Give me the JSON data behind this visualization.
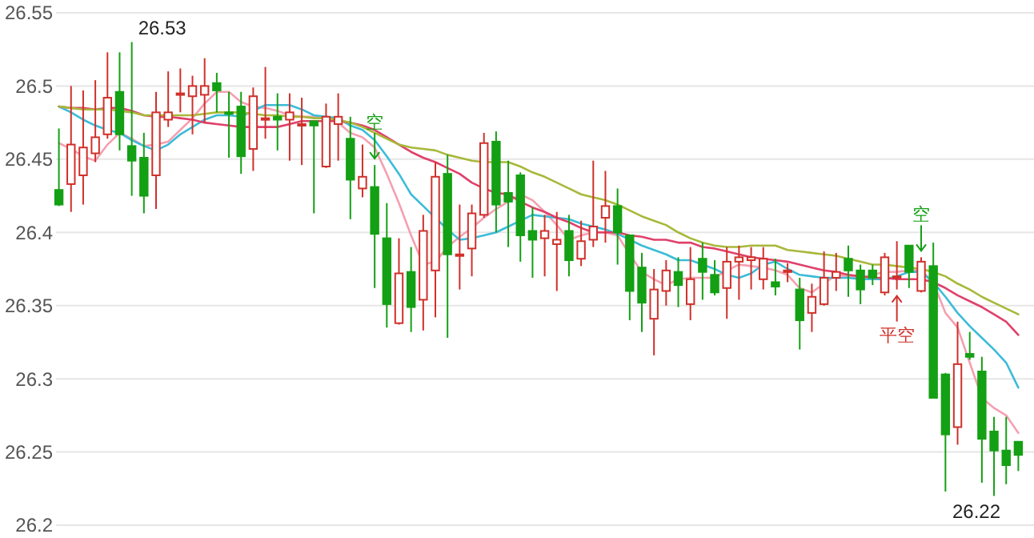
{
  "chart_data": {
    "type": "candlestick",
    "categories": [
      null,
      null,
      null,
      null,
      null,
      null,
      null,
      null,
      null,
      null,
      null,
      null,
      null,
      null,
      null,
      null,
      null,
      null,
      null,
      null,
      null,
      null,
      null,
      null,
      null,
      null,
      null,
      null,
      null,
      null,
      null,
      null,
      null,
      null,
      null,
      null,
      null,
      null,
      null,
      null,
      null,
      null,
      null,
      null,
      null,
      null,
      null,
      null,
      null,
      null,
      null,
      null,
      null,
      null,
      null,
      null,
      null,
      null,
      null,
      null,
      null,
      null,
      null,
      null,
      null,
      null,
      null,
      null,
      null,
      null,
      null,
      null,
      null,
      null,
      null,
      null,
      null,
      null,
      null,
      null
    ],
    "ohlc": [
      [
        26.429,
        26.471,
        26.418,
        26.419
      ],
      [
        26.433,
        26.5,
        26.414,
        26.46
      ],
      [
        26.439,
        26.497,
        26.419,
        26.458
      ],
      [
        26.454,
        26.504,
        26.448,
        26.465
      ],
      [
        26.467,
        26.523,
        26.464,
        26.492
      ],
      [
        26.496,
        26.523,
        26.456,
        26.467
      ],
      [
        26.459,
        26.53,
        26.425,
        26.449
      ],
      [
        26.451,
        26.468,
        26.413,
        26.425
      ],
      [
        26.439,
        26.496,
        26.416,
        26.482
      ],
      [
        26.477,
        26.51,
        26.472,
        26.482
      ],
      [
        26.494,
        26.512,
        26.482,
        26.495
      ],
      [
        26.493,
        26.507,
        26.467,
        26.5
      ],
      [
        26.494,
        26.519,
        26.475,
        26.5
      ],
      [
        26.502,
        26.509,
        26.482,
        26.497
      ],
      [
        26.482,
        26.496,
        26.451,
        26.481
      ],
      [
        26.486,
        26.496,
        26.44,
        26.452
      ],
      [
        26.457,
        26.499,
        26.442,
        26.493
      ],
      [
        26.477,
        26.513,
        26.464,
        26.478
      ],
      [
        26.479,
        26.495,
        26.456,
        26.477
      ],
      [
        26.477,
        26.495,
        26.449,
        26.482
      ],
      [
        26.473,
        26.492,
        26.446,
        26.474
      ],
      [
        26.476,
        26.476,
        26.413,
        26.473
      ],
      [
        26.445,
        26.488,
        26.444,
        26.479
      ],
      [
        26.474,
        26.495,
        26.449,
        26.479
      ],
      [
        26.464,
        26.479,
        26.409,
        26.436
      ],
      [
        26.43,
        26.46,
        26.424,
        26.438
      ],
      [
        26.431,
        26.446,
        26.362,
        26.399
      ],
      [
        26.396,
        26.42,
        26.335,
        26.351
      ],
      [
        26.338,
        26.396,
        26.337,
        26.372
      ],
      [
        26.373,
        26.39,
        26.332,
        26.349
      ],
      [
        26.354,
        26.412,
        26.333,
        26.401
      ],
      [
        26.374,
        26.448,
        26.342,
        26.438
      ],
      [
        26.44,
        26.453,
        26.328,
        26.385
      ],
      [
        26.384,
        26.419,
        26.361,
        26.385
      ],
      [
        26.389,
        26.419,
        26.37,
        26.413
      ],
      [
        26.412,
        26.468,
        26.41,
        26.461
      ],
      [
        26.462,
        26.469,
        26.4,
        26.419
      ],
      [
        26.427,
        26.449,
        26.39,
        26.421
      ],
      [
        26.439,
        26.441,
        26.38,
        26.398
      ],
      [
        26.401,
        26.417,
        26.369,
        26.395
      ],
      [
        26.396,
        26.412,
        26.37,
        26.401
      ],
      [
        26.392,
        26.414,
        26.36,
        26.395
      ],
      [
        26.401,
        26.412,
        26.37,
        26.381
      ],
      [
        26.382,
        26.408,
        26.377,
        26.394
      ],
      [
        26.395,
        26.449,
        26.39,
        26.404
      ],
      [
        26.41,
        26.442,
        26.393,
        26.418
      ],
      [
        26.418,
        26.43,
        26.378,
        26.4
      ],
      [
        26.398,
        26.398,
        26.34,
        26.36
      ],
      [
        26.376,
        26.386,
        26.332,
        26.352
      ],
      [
        26.341,
        26.375,
        26.316,
        26.361
      ],
      [
        26.36,
        26.381,
        26.35,
        26.374
      ],
      [
        26.373,
        26.383,
        26.349,
        26.364
      ],
      [
        26.351,
        26.39,
        26.34,
        26.368
      ],
      [
        26.382,
        26.393,
        26.354,
        26.373
      ],
      [
        26.371,
        26.381,
        26.357,
        26.359
      ],
      [
        26.362,
        26.39,
        26.341,
        26.38
      ],
      [
        26.38,
        26.391,
        26.354,
        26.383
      ],
      [
        26.381,
        26.39,
        26.361,
        26.383
      ],
      [
        26.368,
        26.39,
        26.361,
        26.382
      ],
      [
        26.366,
        26.382,
        26.357,
        26.363
      ],
      [
        26.373,
        26.379,
        26.366,
        26.374
      ],
      [
        26.361,
        26.369,
        26.32,
        26.34
      ],
      [
        26.345,
        26.365,
        26.332,
        26.356
      ],
      [
        26.351,
        26.387,
        26.35,
        26.369
      ],
      [
        26.369,
        26.386,
        26.36,
        26.373
      ],
      [
        26.382,
        26.391,
        26.356,
        26.374
      ],
      [
        26.374,
        26.378,
        26.351,
        26.361
      ],
      [
        26.374,
        26.378,
        26.364,
        26.369
      ],
      [
        26.359,
        26.386,
        26.357,
        26.383
      ],
      [
        26.369,
        26.394,
        26.361,
        26.37
      ],
      [
        26.391,
        26.391,
        26.362,
        26.373
      ],
      [
        26.36,
        26.383,
        26.359,
        26.38
      ],
      [
        26.377,
        26.393,
        26.287,
        26.287
      ],
      [
        26.303,
        26.304,
        26.223,
        26.262
      ],
      [
        26.267,
        26.339,
        26.255,
        26.31
      ],
      [
        26.317,
        26.332,
        26.313,
        26.315
      ],
      [
        26.305,
        26.315,
        26.229,
        26.259
      ],
      [
        26.264,
        26.274,
        26.22,
        26.251
      ],
      [
        26.251,
        26.274,
        26.228,
        26.241
      ],
      [
        26.257,
        26.257,
        26.237,
        26.248
      ]
    ],
    "series": [
      {
        "type": "line",
        "color": "#f4a0b0",
        "values": [
          26.461,
          26.457,
          26.452,
          26.449,
          26.46,
          26.468,
          26.464,
          26.459,
          26.46,
          26.462,
          26.47,
          26.478,
          26.488,
          26.496,
          26.496,
          26.489,
          26.486,
          26.485,
          26.483,
          26.48,
          26.479,
          26.479,
          26.478,
          26.475,
          26.468,
          26.465,
          26.458,
          26.44,
          26.42,
          26.398,
          26.378,
          26.38,
          26.39,
          26.397,
          26.403,
          26.41,
          26.416,
          26.421,
          26.426,
          26.422,
          26.414,
          26.405,
          26.395,
          26.398,
          26.4,
          26.4,
          26.398,
          26.385,
          26.373,
          26.368,
          26.364,
          26.368,
          26.369,
          26.369,
          26.369,
          26.374,
          26.378,
          26.377,
          26.376,
          26.374,
          26.371,
          26.362,
          26.359,
          26.365,
          26.371,
          26.37,
          26.369,
          26.371,
          26.373,
          26.373,
          26.374,
          26.374,
          26.366,
          26.345,
          26.335,
          26.311,
          26.287,
          26.28,
          26.275,
          26.263
        ]
      },
      {
        "type": "line",
        "color": "#3cbcd8",
        "values": [
          26.486,
          26.482,
          26.477,
          26.473,
          26.47,
          26.468,
          26.463,
          26.459,
          26.456,
          26.46,
          26.467,
          26.472,
          26.477,
          26.48,
          26.48,
          26.479,
          26.483,
          26.487,
          26.487,
          26.487,
          26.484,
          26.48,
          26.479,
          26.478,
          26.473,
          26.47,
          26.463,
          26.452,
          26.44,
          26.426,
          26.418,
          26.41,
          26.402,
          26.395,
          26.396,
          26.398,
          26.4,
          26.404,
          26.408,
          26.412,
          26.411,
          26.41,
          26.409,
          26.406,
          26.404,
          26.402,
          26.399,
          26.395,
          26.391,
          26.388,
          26.385,
          26.381,
          26.381,
          26.378,
          26.375,
          26.371,
          26.369,
          26.372,
          26.378,
          26.38,
          26.375,
          26.371,
          26.37,
          26.369,
          26.369,
          26.369,
          26.368,
          26.368,
          26.368,
          26.37,
          26.373,
          26.373,
          26.366,
          26.356,
          26.345,
          26.336,
          26.328,
          26.32,
          26.311,
          26.294
        ]
      },
      {
        "type": "line",
        "color": "#e0406a",
        "values": [
          26.486,
          26.485,
          26.485,
          26.484,
          26.485,
          26.485,
          26.483,
          26.48,
          26.479,
          26.479,
          26.478,
          26.477,
          26.475,
          26.474,
          26.473,
          26.472,
          26.472,
          26.472,
          26.472,
          26.474,
          26.476,
          26.476,
          26.476,
          26.476,
          26.475,
          26.473,
          26.47,
          26.465,
          26.46,
          26.455,
          26.451,
          26.448,
          26.444,
          26.44,
          26.434,
          26.43,
          26.427,
          26.426,
          26.421,
          26.417,
          26.414,
          26.41,
          26.407,
          26.403,
          26.4,
          26.4,
          26.4,
          26.398,
          26.397,
          26.395,
          26.395,
          26.393,
          26.393,
          26.39,
          26.389,
          26.387,
          26.385,
          26.383,
          26.382,
          26.381,
          26.38,
          26.378,
          26.376,
          26.374,
          26.373,
          26.371,
          26.37,
          26.369,
          26.369,
          26.368,
          26.368,
          26.368,
          26.366,
          26.362,
          26.357,
          26.353,
          26.349,
          26.344,
          26.339,
          26.33
        ]
      },
      {
        "type": "line",
        "color": "#a8b83a",
        "values": [
          26.486,
          26.485,
          26.484,
          26.484,
          26.484,
          26.483,
          26.482,
          26.48,
          26.48,
          26.48,
          26.48,
          26.48,
          26.481,
          26.482,
          26.482,
          26.482,
          26.481,
          26.48,
          26.48,
          26.479,
          26.479,
          26.478,
          26.478,
          26.477,
          26.475,
          26.472,
          26.468,
          26.464,
          26.46,
          26.458,
          26.457,
          26.456,
          26.453,
          26.451,
          26.449,
          26.448,
          26.448,
          26.448,
          26.445,
          26.441,
          26.438,
          26.434,
          26.43,
          26.426,
          26.424,
          26.422,
          26.419,
          26.415,
          26.411,
          26.408,
          26.405,
          26.4,
          26.396,
          26.393,
          26.391,
          26.39,
          26.39,
          26.391,
          26.391,
          26.391,
          26.388,
          26.387,
          26.386,
          26.385,
          26.384,
          26.382,
          26.38,
          26.378,
          26.378,
          26.377,
          26.376,
          26.375,
          26.373,
          26.37,
          26.365,
          26.361,
          26.356,
          26.352,
          26.348,
          26.344
        ]
      }
    ],
    "ylim": [
      26.2,
      26.55
    ],
    "yticks": [
      26.2,
      26.25,
      26.3,
      26.35,
      26.4,
      26.45,
      26.5,
      26.55
    ],
    "grid": "y",
    "tick_labels": "y",
    "annotations": [
      "26.53",
      "26.22",
      "空",
      "空",
      "平空"
    ]
  }
}
